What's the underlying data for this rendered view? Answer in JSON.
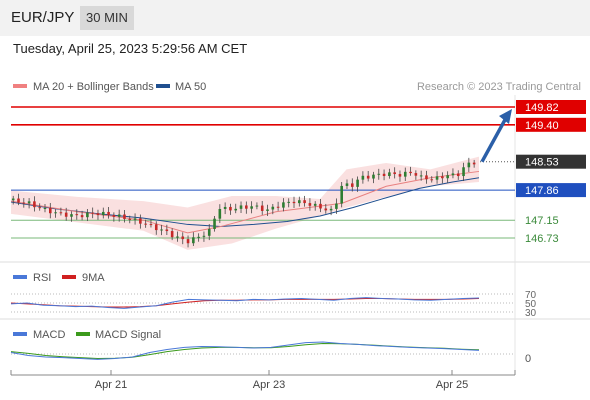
{
  "header": {
    "pair": "EUR/JPY",
    "interval": "30 MIN",
    "datetime": "Tuesday, April 25, 2023 5:29:56 AM CET"
  },
  "colors": {
    "resistance": "#e00000",
    "support_blue": "#1f4fbf",
    "support_green": "#3a8a3a",
    "current": "#333333",
    "bull": "#2e7d32",
    "bear": "#c62828",
    "bb": "#f6c6c6",
    "ma20": "#e88080",
    "ma50": "#1f4f8f",
    "arrow": "#2b5fa8",
    "rsi": "#4a78d8",
    "rsi_ma": "#d02020",
    "macd": "#4a78d8",
    "macd_signal": "#3c9a1c"
  },
  "price_panel": {
    "legend": [
      {
        "name": "MA 20 + Bollinger Bands",
        "color": "#f08080"
      },
      {
        "name": "MA 50",
        "color": "#1f4f8f"
      }
    ],
    "watermark": "Research © 2023 Trading Central",
    "levels": [
      {
        "value": 149.82,
        "label": "149.82",
        "kind": "resistance"
      },
      {
        "value": 149.4,
        "label": "149.40",
        "kind": "resistance"
      },
      {
        "value": 148.53,
        "label": "148.53",
        "kind": "current"
      },
      {
        "value": 147.86,
        "label": "147.86",
        "kind": "support_blue"
      },
      {
        "value": 147.15,
        "label": "147.15",
        "kind": "support_green"
      },
      {
        "value": 146.73,
        "label": "146.73",
        "kind": "support_green"
      }
    ]
  },
  "rsi_panel": {
    "legend": [
      {
        "name": "RSI",
        "color": "#4a78d8"
      },
      {
        "name": "9MA",
        "color": "#d02020"
      }
    ],
    "ticks": [
      "70",
      "50",
      "30"
    ]
  },
  "macd_panel": {
    "legend": [
      {
        "name": "MACD",
        "color": "#4a78d8"
      },
      {
        "name": "MACD Signal",
        "color": "#3c9a1c"
      }
    ],
    "ticks": [
      "0"
    ]
  },
  "chart_data": {
    "type": "candlestick",
    "instrument": "EUR/JPY",
    "timeframe": "30 MIN",
    "x_ticks": [
      "Apr 21",
      "Apr 23",
      "Apr 25"
    ],
    "y_range": [
      146.2,
      150.0
    ],
    "close_path": [
      [
        0,
        147.62
      ],
      [
        8,
        147.55
      ],
      [
        15,
        147.4
      ],
      [
        22,
        147.3
      ],
      [
        30,
        147.25
      ],
      [
        38,
        147.32
      ],
      [
        45,
        147.28
      ],
      [
        52,
        147.2
      ],
      [
        58,
        147.12
      ],
      [
        64,
        147.0
      ],
      [
        70,
        146.88
      ],
      [
        76,
        146.72
      ],
      [
        80,
        146.65
      ],
      [
        86,
        146.78
      ],
      [
        90,
        146.9
      ],
      [
        94,
        147.45
      ],
      [
        98,
        147.4
      ],
      [
        104,
        147.45
      ],
      [
        110,
        147.48
      ],
      [
        116,
        147.38
      ],
      [
        122,
        147.52
      ],
      [
        128,
        147.6
      ],
      [
        134,
        147.55
      ],
      [
        140,
        147.45
      ],
      [
        146,
        147.35
      ],
      [
        150,
        148.0
      ],
      [
        154,
        147.95
      ],
      [
        158,
        148.15
      ],
      [
        164,
        148.2
      ],
      [
        170,
        148.25
      ],
      [
        176,
        148.22
      ],
      [
        182,
        148.28
      ],
      [
        186,
        148.15
      ],
      [
        192,
        148.12
      ],
      [
        198,
        148.22
      ],
      [
        202,
        148.2
      ],
      [
        206,
        148.45
      ],
      [
        210,
        148.52
      ],
      [
        212,
        148.53
      ]
    ],
    "ma20_path": [
      [
        0,
        147.6
      ],
      [
        30,
        147.35
      ],
      [
        60,
        147.15
      ],
      [
        80,
        146.85
      ],
      [
        95,
        147.0
      ],
      [
        120,
        147.35
      ],
      [
        150,
        147.55
      ],
      [
        170,
        147.95
      ],
      [
        190,
        148.15
      ],
      [
        212,
        148.3
      ]
    ],
    "bb_upper_path": [
      [
        0,
        147.85
      ],
      [
        30,
        147.7
      ],
      [
        60,
        147.6
      ],
      [
        80,
        147.45
      ],
      [
        100,
        147.72
      ],
      [
        120,
        147.72
      ],
      [
        140,
        147.65
      ],
      [
        152,
        148.35
      ],
      [
        170,
        148.5
      ],
      [
        190,
        148.35
      ],
      [
        212,
        148.65
      ]
    ],
    "bb_lower_path": [
      [
        0,
        147.3
      ],
      [
        30,
        147.1
      ],
      [
        60,
        146.9
      ],
      [
        80,
        146.45
      ],
      [
        100,
        146.6
      ],
      [
        120,
        146.95
      ],
      [
        140,
        147.25
      ],
      [
        152,
        147.45
      ],
      [
        170,
        147.7
      ],
      [
        190,
        147.95
      ],
      [
        212,
        148.05
      ]
    ],
    "ma50_path": [
      [
        0,
        147.58
      ],
      [
        20,
        147.42
      ],
      [
        40,
        147.3
      ],
      [
        60,
        147.2
      ],
      [
        80,
        147.05
      ],
      [
        95,
        147.0
      ],
      [
        110,
        147.05
      ],
      [
        125,
        147.12
      ],
      [
        140,
        147.25
      ],
      [
        155,
        147.45
      ],
      [
        170,
        147.68
      ],
      [
        185,
        147.9
      ],
      [
        200,
        148.05
      ],
      [
        212,
        148.15
      ]
    ],
    "forecast_arrow": {
      "from": 148.53,
      "to": 149.82
    },
    "rsi": [
      48,
      50,
      45,
      44,
      42,
      43,
      40,
      38,
      41,
      44,
      52,
      58,
      57,
      56,
      55,
      58,
      57,
      59,
      60,
      58,
      56,
      60,
      62,
      60,
      59,
      57,
      56,
      58,
      60,
      61
    ],
    "rsi_9ma": [
      50,
      48,
      46,
      44,
      43,
      42,
      41,
      41,
      42,
      44,
      48,
      52,
      55,
      56,
      56,
      57,
      57,
      58,
      58,
      58,
      58,
      59,
      60,
      60,
      59,
      58,
      58,
      58,
      59,
      60
    ],
    "macd": [
      0.05,
      -0.05,
      -0.1,
      -0.12,
      -0.15,
      -0.18,
      -0.15,
      -0.1,
      0.05,
      0.15,
      0.22,
      0.25,
      0.24,
      0.22,
      0.2,
      0.22,
      0.3,
      0.38,
      0.4,
      0.35,
      0.32,
      0.28,
      0.25,
      0.22,
      0.2,
      0.18,
      0.15,
      0.12
    ],
    "macd_signal": [
      0.08,
      0.02,
      -0.05,
      -0.09,
      -0.12,
      -0.15,
      -0.14,
      -0.11,
      -0.02,
      0.08,
      0.15,
      0.2,
      0.22,
      0.22,
      0.21,
      0.21,
      0.25,
      0.31,
      0.35,
      0.34,
      0.32,
      0.29,
      0.26,
      0.23,
      0.21,
      0.19,
      0.16,
      0.14
    ]
  }
}
